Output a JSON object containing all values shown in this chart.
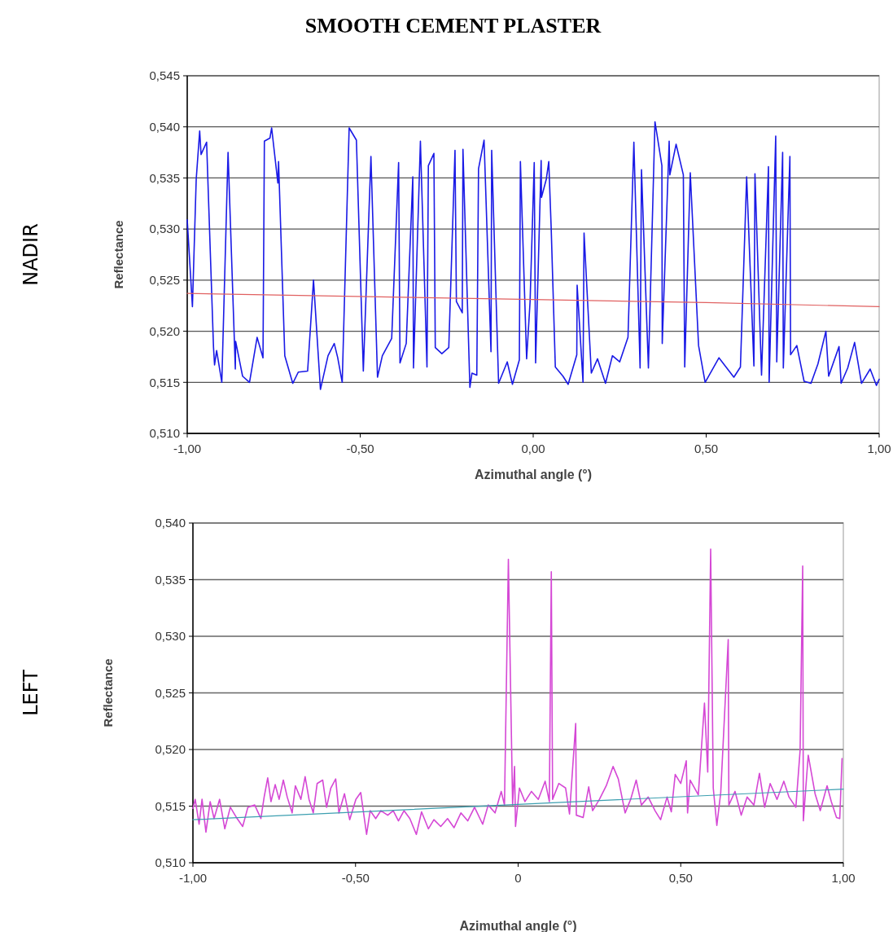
{
  "chart_data": [
    {
      "type": "line",
      "title": "SMOOTH CEMENT PLASTER",
      "annotations": [
        "NADIR"
      ],
      "xlabel": "Azimuthal angle (°)",
      "ylabel": "Reflectance",
      "grid": "y",
      "xlim": [
        -1,
        1
      ],
      "xticks": [
        {
          "value": -1,
          "label": "-1,00"
        },
        {
          "value": -0.5,
          "label": "-0,50"
        },
        {
          "value": 0,
          "label": "0,00"
        },
        {
          "value": 0.5,
          "label": "0,50"
        },
        {
          "value": 1,
          "label": "1,00"
        }
      ],
      "ylim": [
        0.51,
        0.545
      ],
      "yticks": [
        {
          "value": 0.51,
          "label": "0,510"
        },
        {
          "value": 0.515,
          "label": "0,515"
        },
        {
          "value": 0.52,
          "label": "0,520"
        },
        {
          "value": 0.525,
          "label": "0,525"
        },
        {
          "value": 0.53,
          "label": "0,530"
        },
        {
          "value": 0.535,
          "label": "0,535"
        },
        {
          "value": 0.54,
          "label": "0,540"
        },
        {
          "value": 0.545,
          "label": "0,545"
        }
      ],
      "series": [
        {
          "color": "#1a1ae6",
          "x": [
            -1,
            -0.985,
            -0.974,
            -0.964,
            -0.96,
            -0.944,
            -0.924,
            -0.921,
            -0.915,
            -0.9,
            -0.882,
            -0.861,
            -0.86,
            -0.84,
            -0.82,
            -0.798,
            -0.781,
            -0.777,
            -0.761,
            -0.756,
            -0.738,
            -0.736,
            -0.718,
            -0.695,
            -0.679,
            -0.652,
            -0.635,
            -0.615,
            -0.593,
            -0.575,
            -0.565,
            -0.552,
            -0.532,
            -0.511,
            -0.491,
            -0.469,
            -0.45,
            -0.436,
            -0.409,
            -0.389,
            -0.385,
            -0.367,
            -0.348,
            -0.346,
            -0.326,
            -0.307,
            -0.303,
            -0.287,
            -0.283,
            -0.264,
            -0.244,
            -0.226,
            -0.222,
            -0.205,
            -0.203,
            -0.183,
            -0.177,
            -0.163,
            -0.158,
            -0.142,
            -0.122,
            -0.12,
            -0.1,
            -0.075,
            -0.06,
            -0.04,
            -0.037,
            -0.019,
            -0.009,
            0.003,
            0.007,
            0.023,
            0.024,
            0.038,
            0.045,
            0.052,
            0.064,
            0.086,
            0.101,
            0.126,
            0.127,
            0.144,
            0.147,
            0.168,
            0.186,
            0.209,
            0.229,
            0.25,
            0.274,
            0.291,
            0.309,
            0.313,
            0.333,
            0.352,
            0.372,
            0.373,
            0.393,
            0.395,
            0.413,
            0.434,
            0.438,
            0.454,
            0.478,
            0.497,
            0.537,
            0.58,
            0.599,
            0.617,
            0.638,
            0.641,
            0.66,
            0.68,
            0.682,
            0.701,
            0.704,
            0.721,
            0.723,
            0.742,
            0.744,
            0.762,
            0.783,
            0.803,
            0.823,
            0.846,
            0.854,
            0.884,
            0.89,
            0.909,
            0.929,
            0.949,
            0.974,
            0.992,
            1
          ],
          "values": [
            0.5309,
            0.5224,
            0.5349,
            0.5396,
            0.5373,
            0.5385,
            0.5184,
            0.5167,
            0.5181,
            0.515,
            0.5375,
            0.5163,
            0.519,
            0.5156,
            0.515,
            0.5194,
            0.5174,
            0.5386,
            0.5389,
            0.5399,
            0.5345,
            0.5366,
            0.5176,
            0.5149,
            0.516,
            0.5161,
            0.525,
            0.5143,
            0.5176,
            0.5188,
            0.5174,
            0.515,
            0.5399,
            0.5387,
            0.5161,
            0.5371,
            0.5155,
            0.5176,
            0.5193,
            0.5365,
            0.5169,
            0.5188,
            0.5351,
            0.5164,
            0.5386,
            0.5165,
            0.5362,
            0.5374,
            0.5184,
            0.5178,
            0.5184,
            0.5377,
            0.5229,
            0.5218,
            0.5378,
            0.5145,
            0.5159,
            0.5157,
            0.5359,
            0.5387,
            0.518,
            0.5377,
            0.5149,
            0.517,
            0.5148,
            0.5172,
            0.5366,
            0.5173,
            0.5229,
            0.5365,
            0.5169,
            0.5367,
            0.5331,
            0.5349,
            0.5366,
            0.5301,
            0.5165,
            0.5156,
            0.5148,
            0.5177,
            0.5245,
            0.515,
            0.5296,
            0.5159,
            0.5173,
            0.5149,
            0.5176,
            0.517,
            0.5194,
            0.5385,
            0.5164,
            0.5358,
            0.5164,
            0.5405,
            0.5362,
            0.5188,
            0.5386,
            0.5353,
            0.5383,
            0.5353,
            0.5165,
            0.5355,
            0.5186,
            0.515,
            0.5174,
            0.5155,
            0.5165,
            0.5351,
            0.5166,
            0.5354,
            0.5157,
            0.5361,
            0.515,
            0.5391,
            0.517,
            0.5375,
            0.5164,
            0.5371,
            0.5177,
            0.5186,
            0.5151,
            0.5149,
            0.5168,
            0.52,
            0.5156,
            0.5185,
            0.5149,
            0.5164,
            0.5189,
            0.5149,
            0.5163,
            0.5147,
            0.5153
          ]
        },
        {
          "color": "#e06060",
          "x": [
            -1,
            0,
            0.5,
            1
          ],
          "values": [
            0.5237,
            0.5231,
            0.5228,
            0.5224
          ]
        }
      ]
    },
    {
      "type": "line",
      "annotations": [
        "LEFT"
      ],
      "xlabel": "Azimuthal angle (°)",
      "ylabel": "Reflectance",
      "grid": "y",
      "xlim": [
        -1,
        1
      ],
      "xticks": [
        {
          "value": -1,
          "label": "-1,00"
        },
        {
          "value": -0.5,
          "label": "-0,50"
        },
        0,
        {
          "value": 0.5,
          "label": "0,50"
        },
        {
          "value": 1,
          "label": "1,00"
        }
      ],
      "ylim": [
        0.51,
        0.54
      ],
      "yticks": [
        {
          "value": 0.51,
          "label": "0,510"
        },
        {
          "value": 0.515,
          "label": "0,515"
        },
        {
          "value": 0.52,
          "label": "0,520"
        },
        {
          "value": 0.525,
          "label": "0,525"
        },
        {
          "value": 0.53,
          "label": "0,530"
        },
        {
          "value": 0.535,
          "label": "0,535"
        },
        {
          "value": 0.54,
          "label": "0,540"
        }
      ],
      "series": [
        {
          "color": "#d548d5",
          "x": [
            -1,
            -0.993,
            -0.981,
            -0.972,
            -0.96,
            -0.947,
            -0.935,
            -0.918,
            -0.902,
            -0.885,
            -0.864,
            -0.847,
            -0.831,
            -0.81,
            -0.791,
            -0.781,
            -0.77,
            -0.76,
            -0.747,
            -0.735,
            -0.722,
            -0.71,
            -0.695,
            -0.685,
            -0.668,
            -0.655,
            -0.643,
            -0.63,
            -0.618,
            -0.601,
            -0.589,
            -0.576,
            -0.561,
            -0.551,
            -0.534,
            -0.518,
            -0.499,
            -0.484,
            -0.466,
            -0.455,
            -0.438,
            -0.422,
            -0.401,
            -0.384,
            -0.368,
            -0.351,
            -0.333,
            -0.313,
            -0.297,
            -0.276,
            -0.259,
            -0.238,
            -0.217,
            -0.197,
            -0.176,
            -0.155,
            -0.134,
            -0.109,
            -0.092,
            -0.071,
            -0.052,
            -0.042,
            -0.03,
            -0.017,
            -0.011,
            -0.008,
            0.004,
            0.021,
            0.041,
            0.062,
            0.083,
            0.096,
            0.102,
            0.106,
            0.125,
            0.146,
            0.158,
            0.177,
            0.179,
            0.2,
            0.217,
            0.229,
            0.25,
            0.271,
            0.292,
            0.308,
            0.329,
            0.346,
            0.363,
            0.379,
            0.4,
            0.421,
            0.438,
            0.458,
            0.471,
            0.483,
            0.5,
            0.517,
            0.521,
            0.529,
            0.554,
            0.573,
            0.583,
            0.592,
            0.6,
            0.611,
            0.623,
            0.646,
            0.648,
            0.667,
            0.686,
            0.704,
            0.725,
            0.742,
            0.758,
            0.775,
            0.796,
            0.817,
            0.833,
            0.854,
            0.867,
            0.875,
            0.877,
            0.892,
            0.913,
            0.929,
            0.95,
            0.963,
            0.979,
            0.989,
            0.996
          ],
          "values": [
            0.5148,
            0.5156,
            0.5134,
            0.5156,
            0.5127,
            0.5154,
            0.5139,
            0.5156,
            0.513,
            0.5149,
            0.5139,
            0.5132,
            0.5149,
            0.5151,
            0.5139,
            0.5158,
            0.5175,
            0.5154,
            0.5169,
            0.5156,
            0.5173,
            0.5158,
            0.5144,
            0.5168,
            0.5156,
            0.5176,
            0.5156,
            0.5144,
            0.517,
            0.5173,
            0.5149,
            0.5166,
            0.5174,
            0.5144,
            0.5161,
            0.5138,
            0.5156,
            0.5162,
            0.5125,
            0.5146,
            0.5139,
            0.5146,
            0.5142,
            0.5146,
            0.5137,
            0.5146,
            0.5139,
            0.5125,
            0.5145,
            0.513,
            0.5138,
            0.5132,
            0.5139,
            0.5131,
            0.5144,
            0.5137,
            0.5149,
            0.5134,
            0.5151,
            0.5144,
            0.5163,
            0.5151,
            0.5368,
            0.5151,
            0.5185,
            0.5132,
            0.5166,
            0.5154,
            0.5163,
            0.5156,
            0.5172,
            0.5154,
            0.5357,
            0.5156,
            0.517,
            0.5166,
            0.5143,
            0.5223,
            0.5142,
            0.514,
            0.5167,
            0.5146,
            0.5156,
            0.5168,
            0.5185,
            0.5174,
            0.5144,
            0.5156,
            0.5173,
            0.5151,
            0.5158,
            0.5146,
            0.5138,
            0.5158,
            0.5145,
            0.5178,
            0.517,
            0.519,
            0.5144,
            0.5173,
            0.516,
            0.5241,
            0.518,
            0.5377,
            0.5166,
            0.5133,
            0.5162,
            0.5297,
            0.5151,
            0.5163,
            0.5142,
            0.5158,
            0.5151,
            0.5179,
            0.5149,
            0.517,
            0.5156,
            0.5172,
            0.5158,
            0.5149,
            0.5199,
            0.5362,
            0.5137,
            0.5195,
            0.5161,
            0.5146,
            0.5168,
            0.5154,
            0.514,
            0.5139,
            0.5192
          ]
        },
        {
          "color": "#3c9fb0",
          "x": [
            -1,
            1
          ],
          "values": [
            0.5138,
            0.5165
          ]
        }
      ]
    }
  ]
}
